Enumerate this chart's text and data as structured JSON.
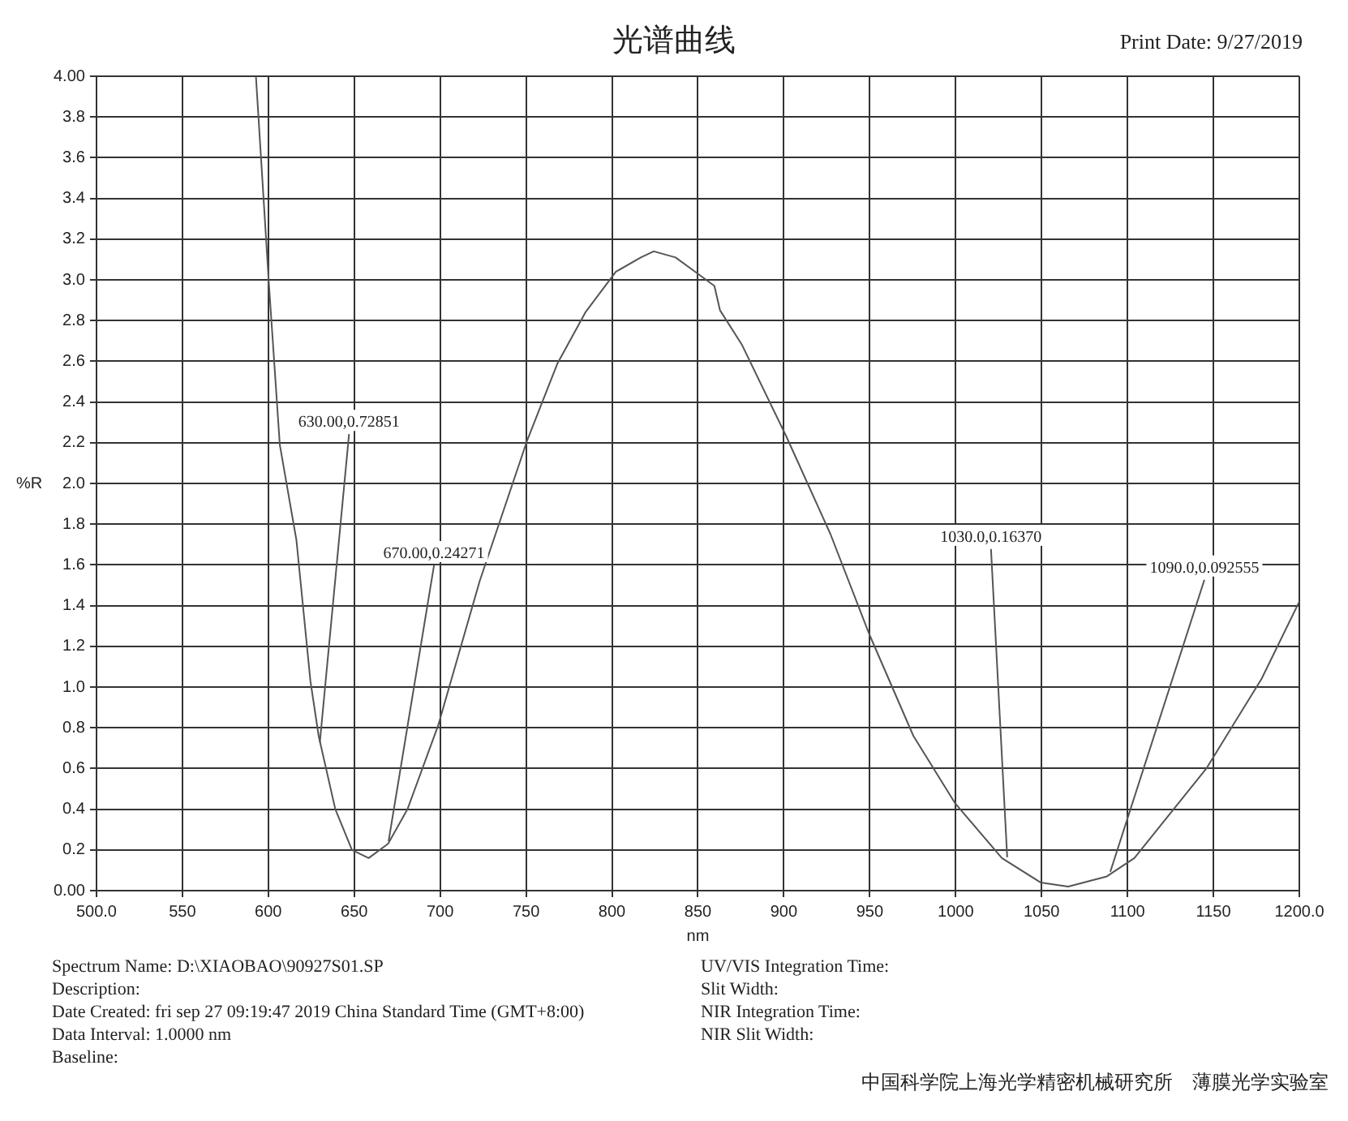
{
  "chart_data": {
    "type": "line",
    "title": "光谱曲线",
    "xlabel": "nm",
    "ylabel": "%R",
    "x": [
      592.8,
      600.2,
      606.7,
      616.4,
      624.5,
      629.3,
      639,
      648.7,
      658.4,
      669.7,
      681,
      698.8,
      723,
      750.6,
      768.3,
      784.5,
      802.3,
      816.8,
      824.3,
      837,
      850,
      859.6,
      862.9,
      875.7,
      901.5,
      927.2,
      949.7,
      975.4,
      999.6,
      1026.9,
      1049.4,
      1065.5,
      1088,
      1104,
      1145.9,
      1178,
      1200
    ],
    "series": [
      {
        "color": "#555555",
        "values": [
          4.0,
          3.0,
          2.19,
          1.72,
          1.03,
          0.76,
          0.4,
          0.2,
          0.16,
          0.23,
          0.4,
          0.81,
          1.52,
          2.21,
          2.59,
          2.84,
          3.04,
          3.11,
          3.14,
          3.11,
          3.03,
          2.97,
          2.85,
          2.68,
          2.23,
          1.75,
          1.26,
          0.76,
          0.43,
          0.16,
          0.04,
          0.02,
          0.07,
          0.16,
          0.6,
          1.04,
          1.42
        ]
      }
    ],
    "xlim": [
      500,
      1200
    ],
    "xticks": [
      {
        "value": 500,
        "label": "500.0"
      },
      550,
      600,
      650,
      700,
      750,
      800,
      850,
      900,
      950,
      1000,
      1050,
      1100,
      1150,
      {
        "value": 1200,
        "label": "1200.0"
      }
    ],
    "ylim": [
      0,
      4
    ],
    "yticks": [
      {
        "value": 0,
        "label": "0.00"
      },
      0.2,
      0.4,
      0.6,
      0.8,
      {
        "value": 1,
        "label": "1.0"
      },
      1.2,
      1.4,
      1.6,
      1.8,
      {
        "value": 2,
        "label": "2.0"
      },
      2.2,
      2.4,
      2.6,
      2.8,
      {
        "value": 3,
        "label": "3.0"
      },
      3.2,
      3.4,
      3.6,
      3.8,
      {
        "value": 4,
        "label": "4.00"
      }
    ],
    "grid": true,
    "legend": false,
    "marker": "none",
    "line_style": "solid",
    "annotations": [
      {
        "text": "630.00,0.72851",
        "x": 630,
        "y": 0.72851
      },
      {
        "text": "670.00,0.24271",
        "x": 670,
        "y": 0.24271
      },
      {
        "text": "1030.0,0.16370",
        "x": 1030,
        "y": 0.1637
      },
      {
        "text": "1090.0,0.092555",
        "x": 1090,
        "y": 0.092555
      },
      "Print Date: 9/27/2019",
      "Spectrum Name: D:\\XIAOBAO\\90927S01.SP",
      "Description:",
      "Date Created: fri sep 27 09:19:47 2019 China Standard Time (GMT+8:00)",
      "Data Interval: 1.0000 nm",
      "Baseline:",
      "UV/VIS Integration Time:",
      "Slit Width:",
      "NIR Integration Time:",
      "NIR Slit Width:",
      "中国科学院上海光学精密机械研究所　薄膜光学实验室"
    ]
  }
}
